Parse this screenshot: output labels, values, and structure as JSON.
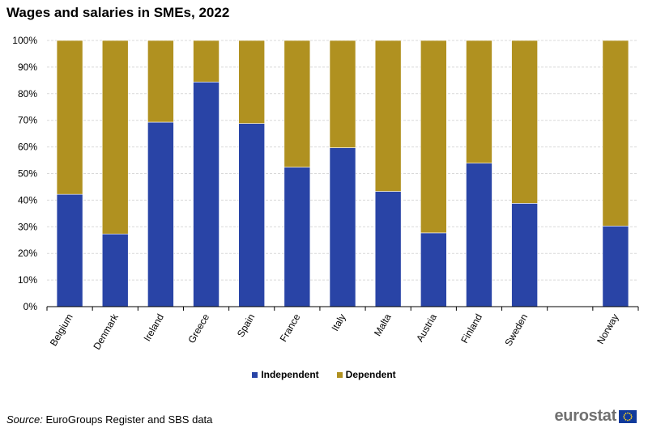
{
  "title": "Wages and salaries in SMEs, 2022",
  "source_label": "Source:",
  "source_text": "EuroGroups Register and SBS data",
  "logo_text": "eurostat",
  "legend": [
    {
      "name": "Independent",
      "color": "#2944a6"
    },
    {
      "name": "Dependent",
      "color": "#b09120"
    }
  ],
  "chart_data": {
    "type": "bar",
    "stacked": true,
    "title": "Wages and salaries in SMEs, 2022",
    "xlabel": "",
    "ylabel": "",
    "ylim": [
      0,
      100
    ],
    "yticks": [
      "0%",
      "10%",
      "20%",
      "30%",
      "40%",
      "50%",
      "60%",
      "70%",
      "80%",
      "90%",
      "100%"
    ],
    "categories": [
      "Belgium",
      "Denmark",
      "Ireland",
      "Greece",
      "Spain",
      "France",
      "Italy",
      "Malta",
      "Austria",
      "Finland",
      "Sweden",
      "",
      "Norway"
    ],
    "series": [
      {
        "name": "Independent",
        "color": "#2944a6",
        "values": [
          42.2,
          27.3,
          69.3,
          84.4,
          68.8,
          52.4,
          59.7,
          43.3,
          27.7,
          53.9,
          38.8,
          null,
          30.3
        ]
      },
      {
        "name": "Dependent",
        "color": "#b09120",
        "values": [
          57.8,
          72.7,
          30.7,
          15.6,
          31.2,
          47.6,
          40.3,
          56.7,
          72.3,
          46.1,
          61.2,
          null,
          69.7
        ]
      }
    ],
    "grid": true,
    "legend_position": "bottom-center"
  }
}
